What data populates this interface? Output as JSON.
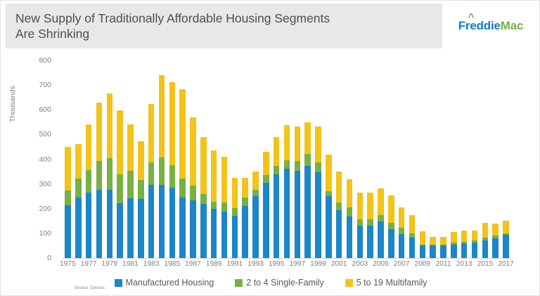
{
  "header": {
    "title_line1": "New Supply of Traditionally Affordable Housing Segments",
    "title_line2": "Are Shrinking",
    "logo": {
      "freddie": "Freddie",
      "mac": "Mac"
    }
  },
  "source_note": "Source: Census",
  "chart_data": {
    "type": "bar",
    "stacked": true,
    "grid": false,
    "legend_position": "bottom",
    "ylabel": "Thousands",
    "ylim": [
      0,
      800
    ],
    "yticks": [
      0,
      100,
      200,
      300,
      400,
      500,
      600,
      700,
      800
    ],
    "categories": [
      "1975",
      "1976",
      "1977",
      "1978",
      "1979",
      "1980",
      "1981",
      "1982",
      "1983",
      "1984",
      "1985",
      "1986",
      "1987",
      "1988",
      "1989",
      "1990",
      "1991",
      "1992",
      "1993",
      "1994",
      "1995",
      "1996",
      "1997",
      "1998",
      "1999",
      "2000",
      "2001",
      "2002",
      "2003",
      "2004",
      "2005",
      "2006",
      "2007",
      "2008",
      "2009",
      "2010",
      "2011",
      "2012",
      "2013",
      "2014",
      "2015",
      "2016",
      "2017"
    ],
    "xtick_labels": [
      "1975",
      "1977",
      "1979",
      "1981",
      "1983",
      "1985",
      "1987",
      "1989",
      "1991",
      "1993",
      "1995",
      "1997",
      "1999",
      "2001",
      "2003",
      "2005",
      "2007",
      "2009",
      "2011",
      "2013",
      "2015",
      "2017"
    ],
    "series": [
      {
        "name": "Manufactured Housing",
        "color": "#1b86c8",
        "values": [
          213,
          246,
          266,
          276,
          277,
          222,
          241,
          239,
          296,
          295,
          284,
          244,
          233,
          218,
          198,
          188,
          171,
          212,
          250,
          304,
          340,
          361,
          354,
          373,
          348,
          250,
          193,
          168,
          131,
          131,
          147,
          117,
          96,
          82,
          50,
          50,
          52,
          55,
          60,
          64,
          71,
          81,
          93
        ]
      },
      {
        "name": "2 to 4 Single-Family",
        "color": "#77b043",
        "values": [
          60,
          75,
          91,
          116,
          126,
          118,
          113,
          76,
          91,
          113,
          91,
          78,
          61,
          41,
          30,
          36,
          31,
          33,
          25,
          31,
          33,
          34,
          38,
          47,
          39,
          20,
          33,
          38,
          26,
          27,
          27,
          25,
          27,
          18,
          5,
          3,
          3,
          7,
          6,
          7,
          12,
          9,
          8
        ]
      },
      {
        "name": "5 to 19 Multifamily",
        "color": "#f2c318",
        "values": [
          178,
          141,
          183,
          238,
          262,
          258,
          186,
          159,
          237,
          332,
          338,
          361,
          276,
          231,
          209,
          186,
          123,
          80,
          75,
          95,
          117,
          144,
          140,
          130,
          145,
          150,
          125,
          113,
          109,
          108,
          107,
          112,
          82,
          74,
          52,
          32,
          30,
          43,
          44,
          41,
          59,
          49,
          51
        ]
      }
    ]
  }
}
